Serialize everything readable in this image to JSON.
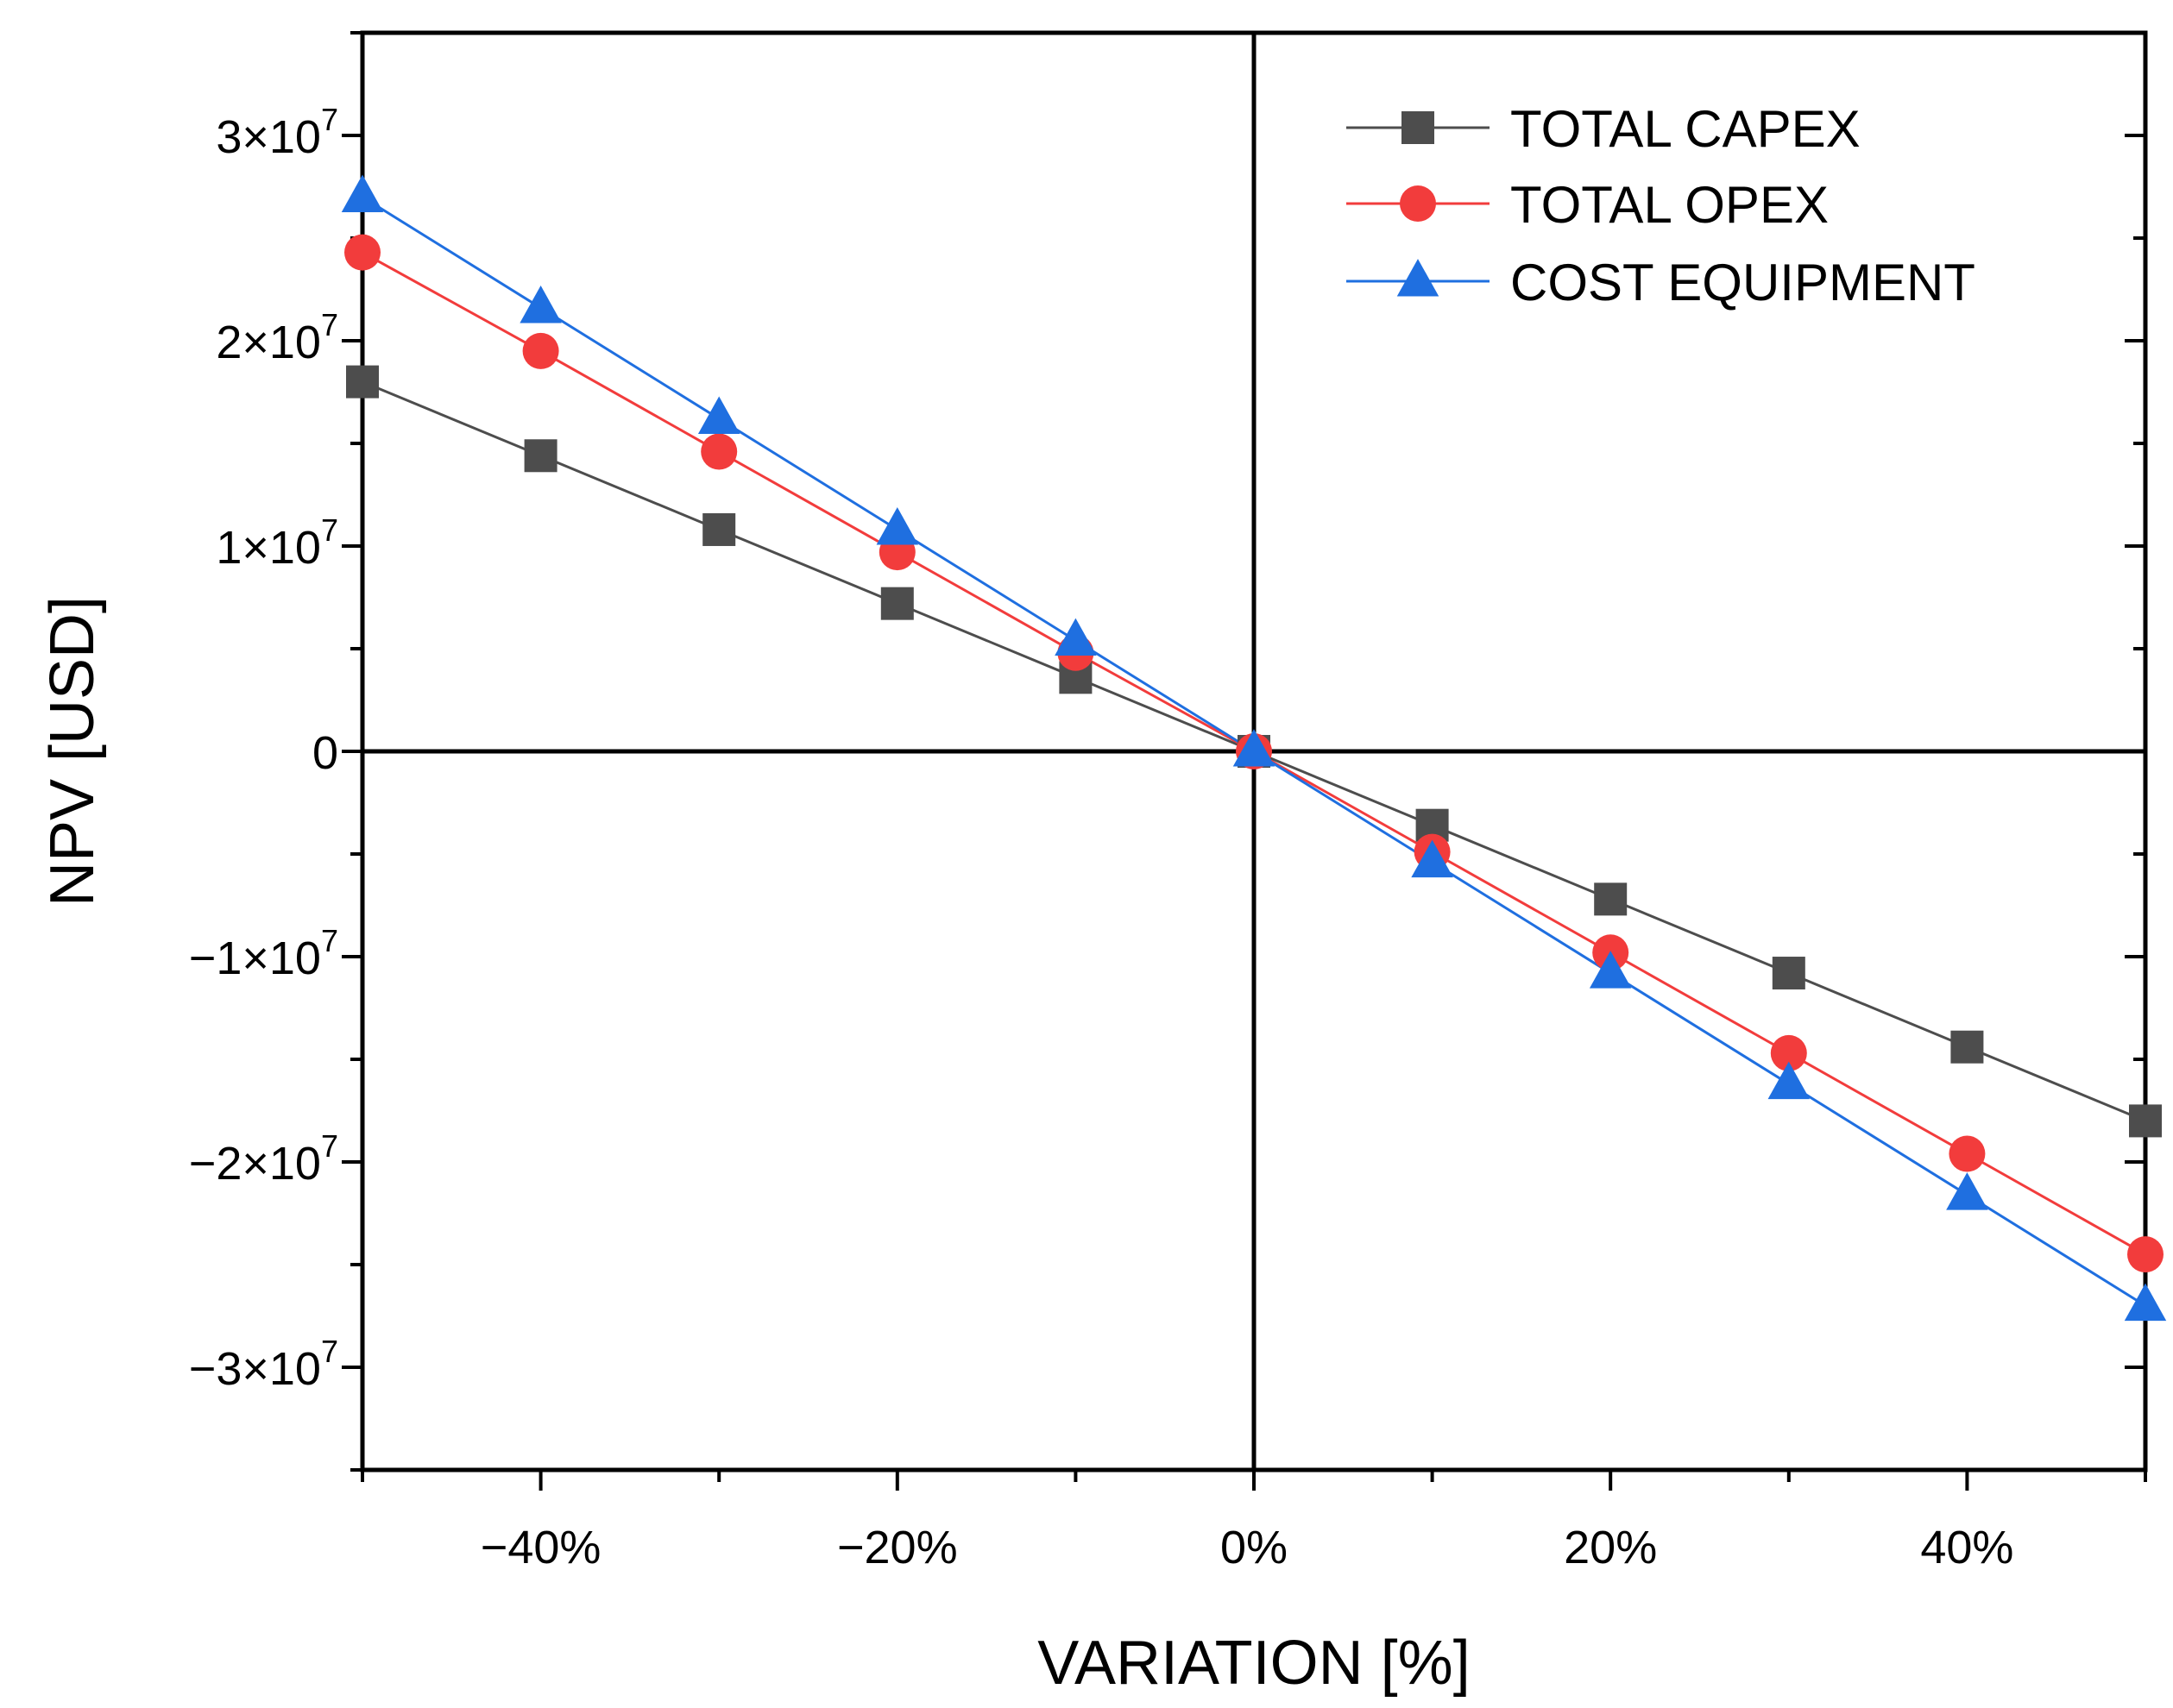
{
  "chart_data": {
    "type": "line",
    "title": "",
    "xlabel": "VARIATION [%]",
    "ylabel": "NPV [USD]",
    "xlim": [
      -50,
      50
    ],
    "ylim": [
      -35000000,
      35000000
    ],
    "x": [
      -50,
      -40,
      -30,
      -20,
      -10,
      0,
      10,
      20,
      30,
      40,
      50
    ],
    "x_ticks": [
      -40,
      -20,
      0,
      20,
      40
    ],
    "x_tick_labels": [
      "−40%",
      "−20%",
      "0%",
      "20%",
      "40%"
    ],
    "y_ticks": [
      30000000,
      20000000,
      10000000,
      0,
      -10000000,
      -20000000,
      -30000000
    ],
    "y_tick_labels": [
      {
        "mantissa": "3×10",
        "exp": "7"
      },
      {
        "mantissa": "2×10",
        "exp": "7"
      },
      {
        "mantissa": "1×10",
        "exp": "7"
      },
      {
        "mantissa": "0",
        "exp": ""
      },
      {
        "mantissa": "−1×10",
        "exp": "7"
      },
      {
        "mantissa": "−2×10",
        "exp": "7"
      },
      {
        "mantissa": "−3×10",
        "exp": "7"
      }
    ],
    "legend_position": "top-right",
    "series": [
      {
        "name": "TOTAL CAPEX",
        "color": "#4d4d4d",
        "marker": "square",
        "values": [
          18000000,
          14400000,
          10800000,
          7200000,
          3600000,
          0,
          -3600000,
          -7200000,
          -10800000,
          -14400000,
          -18000000
        ]
      },
      {
        "name": "TOTAL OPEX",
        "color": "#f23c3c",
        "marker": "circle",
        "values": [
          24300000,
          19500000,
          14600000,
          9700000,
          4800000,
          0,
          -4900000,
          -9800000,
          -14700000,
          -19600000,
          -24500000
        ]
      },
      {
        "name": "COST EQUIPMENT",
        "color": "#1f6fe0",
        "marker": "triangle",
        "values": [
          27000000,
          21600000,
          16200000,
          10800000,
          5400000,
          0,
          -5400000,
          -10800000,
          -16200000,
          -21600000,
          -27000000
        ]
      }
    ]
  }
}
